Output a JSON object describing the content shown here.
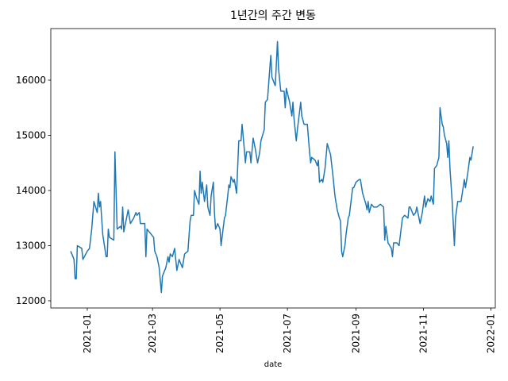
{
  "chart_data": {
    "type": "line",
    "title": "1년간의 주간 변동",
    "x_label": "date",
    "color": "#1f77b4",
    "xlim": [
      18595,
      18997
    ],
    "xticks": [
      {
        "value": 18628,
        "label": "2021-01"
      },
      {
        "value": 18687,
        "label": "2021-03"
      },
      {
        "value": 18748,
        "label": "2021-05"
      },
      {
        "value": 18809,
        "label": "2021-07"
      },
      {
        "value": 18871,
        "label": "2021-09"
      },
      {
        "value": 18932,
        "label": "2021-11"
      },
      {
        "value": 18993,
        "label": "2022-01"
      }
    ],
    "ylim": [
      11870,
      16935
    ],
    "yticks": [
      12000,
      13000,
      14000,
      15000,
      16000
    ],
    "x": [
      18613,
      18616,
      18617,
      18618,
      18619,
      18623,
      18624,
      18628,
      18630,
      18632,
      18634,
      18637,
      18638,
      18639,
      18640,
      18642,
      18645,
      18646,
      18647,
      18648,
      18652,
      18653,
      18655,
      18658,
      18659,
      18660,
      18661,
      18662,
      18665,
      18667,
      18670,
      18672,
      18673,
      18675,
      18676,
      18680,
      18681,
      18682,
      18686,
      18688,
      18689,
      18691,
      18693,
      18695,
      18696,
      18699,
      18701,
      18702,
      18703,
      18705,
      18707,
      18709,
      18711,
      18714,
      18716,
      18719,
      18721,
      18722,
      18724,
      18725,
      18727,
      18729,
      18730,
      18731,
      18732,
      18734,
      18736,
      18737,
      18739,
      18740,
      18742,
      18743,
      18744,
      18746,
      18748,
      18749,
      18752,
      18753,
      18755,
      18756,
      18757,
      18758,
      18760,
      18761,
      18763,
      18765,
      18767,
      18768,
      18770,
      18771,
      18772,
      18775,
      18776,
      18778,
      18780,
      18782,
      18784,
      18785,
      18788,
      18789,
      18791,
      18793,
      18794,
      18795,
      18798,
      18800,
      18801,
      18803,
      18806,
      18807,
      18808,
      18811,
      18813,
      18814,
      18815,
      18817,
      18818,
      18821,
      18822,
      18824,
      18827,
      18829,
      18830,
      18831,
      18834,
      18836,
      18837,
      18838,
      18840,
      18841,
      18843,
      18845,
      18848,
      18850,
      18852,
      18854,
      18856,
      18857,
      18858,
      18859,
      18861,
      18862,
      18864,
      18865,
      18868,
      18869,
      18871,
      18874,
      18875,
      18877,
      18880,
      18881,
      18882,
      18883,
      18885,
      18887,
      18890,
      18893,
      18896,
      18897,
      18898,
      18900,
      18903,
      18904,
      18905,
      18908,
      18910,
      18913,
      18915,
      18918,
      18919,
      18920,
      18923,
      18925,
      18926,
      18928,
      18929,
      18931,
      18933,
      18934,
      18936,
      18938,
      18939,
      18941,
      18942,
      18944,
      18946,
      18947,
      18949,
      18950,
      18951,
      18953,
      18954,
      18955,
      18956,
      18958,
      18960,
      18961,
      18963,
      18966,
      18969,
      18970,
      18972,
      18974,
      18975,
      18977
    ],
    "values": [
      12900,
      12750,
      12400,
      12400,
      13000,
      12950,
      12750,
      12900,
      12950,
      13300,
      13800,
      13600,
      13950,
      13700,
      13800,
      13200,
      12800,
      12800,
      13300,
      13150,
      13100,
      14700,
      13300,
      13350,
      13300,
      13700,
      13250,
      13350,
      13650,
      13400,
      13500,
      13600,
      13550,
      13600,
      13400,
      13400,
      12800,
      13300,
      13200,
      13150,
      12900,
      12800,
      12600,
      12150,
      12450,
      12600,
      12800,
      12700,
      12850,
      12800,
      12950,
      12550,
      12750,
      12600,
      12850,
      12900,
      13450,
      13550,
      13550,
      14000,
      13850,
      13750,
      14350,
      13950,
      14150,
      13800,
      14100,
      13700,
      13550,
      13900,
      14150,
      13600,
      13300,
      13400,
      13300,
      13000,
      13500,
      13550,
      13900,
      14100,
      14050,
      14250,
      14150,
      14200,
      13950,
      14900,
      14900,
      15200,
      14750,
      14500,
      14700,
      14700,
      14500,
      14950,
      14750,
      14500,
      14700,
      14900,
      15100,
      15600,
      15650,
      16200,
      16450,
      16050,
      15900,
      16700,
      16200,
      15800,
      15800,
      15500,
      15850,
      15600,
      15350,
      15600,
      15300,
      14900,
      15100,
      15600,
      15350,
      15200,
      15200,
      14700,
      14500,
      14600,
      14550,
      14450,
      14550,
      14150,
      14200,
      14150,
      14400,
      14850,
      14650,
      14300,
      13900,
      13650,
      13500,
      13450,
      12900,
      12800,
      13000,
      13200,
      13500,
      13550,
      14050,
      14050,
      14150,
      14200,
      14200,
      13950,
      13750,
      13650,
      13800,
      13600,
      13750,
      13700,
      13700,
      13750,
      13700,
      13100,
      13350,
      13050,
      12950,
      12800,
      13050,
      13050,
      13000,
      13500,
      13550,
      13500,
      13700,
      13700,
      13550,
      13600,
      13700,
      13500,
      13400,
      13600,
      13900,
      13700,
      13850,
      13800,
      13900,
      13750,
      14400,
      14450,
      14600,
      15500,
      15200,
      15150,
      15000,
      14850,
      14600,
      14900,
      14400,
      13800,
      13000,
      13500,
      13800,
      13800,
      14200,
      14050,
      14300,
      14600,
      14550,
      14800
    ]
  }
}
